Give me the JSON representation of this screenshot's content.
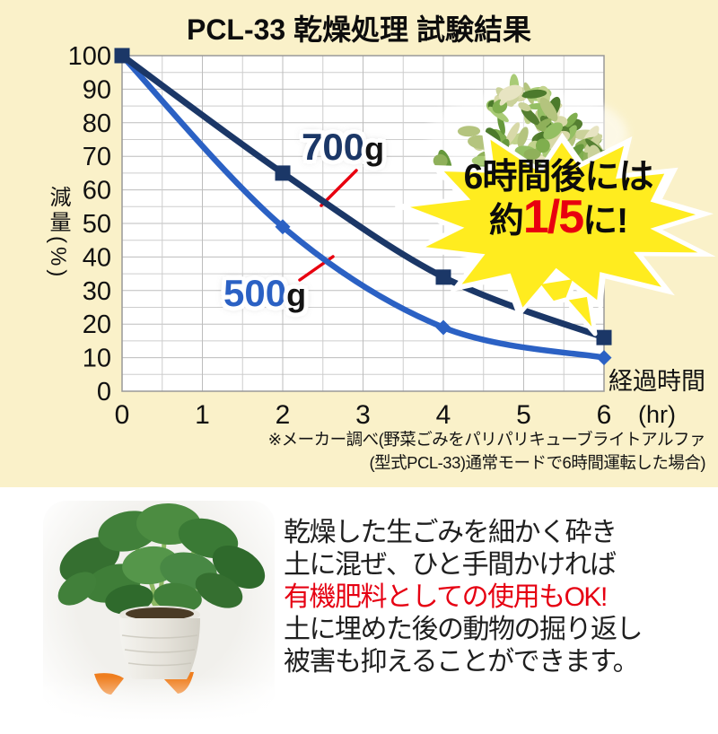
{
  "title": "PCL-33 乾燥処理 試験結果",
  "chart_data": {
    "type": "line",
    "x": [
      0,
      2,
      4,
      6
    ],
    "series": [
      {
        "name": "700g",
        "label_value": "700",
        "label_unit": "g",
        "color": "#1b3767",
        "marker": "square",
        "values": [
          100,
          65,
          34,
          16
        ]
      },
      {
        "name": "500g",
        "label_value": "500",
        "label_unit": "g",
        "color": "#2b61c4",
        "marker": "diamond",
        "values": [
          100,
          49,
          19,
          10
        ]
      }
    ],
    "title": "PCL-33 乾燥処理 試験結果",
    "xlabel": "経過時間",
    "xlabel_unit": "(hr)",
    "ylabel": "減量(%)",
    "xlim": [
      0,
      6
    ],
    "ylim": [
      0,
      100
    ],
    "x_ticks": [
      "0",
      "1",
      "2",
      "3",
      "4",
      "5",
      "6"
    ],
    "y_ticks": [
      "0",
      "10",
      "20",
      "30",
      "40",
      "50",
      "60",
      "70",
      "80",
      "90",
      "100"
    ],
    "x_minor_step": 0.5,
    "y_minor_step": 5,
    "grid": "on",
    "legend_position": "inline-labels"
  },
  "badge": {
    "line1": "6時間後には",
    "line2_prefix": "約",
    "line2_fraction": "1/5",
    "line2_suffix": "に!"
  },
  "footnote": {
    "line1": "※メーカー調べ(野菜ごみをパリパリキューブライトアルファ",
    "line2": "(型式PCL-33)通常モードで6時間運転した場合)"
  },
  "bottom": {
    "lines": [
      {
        "text": "乾燥した生ごみを細かく砕き",
        "emphasis": false
      },
      {
        "text": "土に混ぜ、ひと手間かければ",
        "emphasis": false
      },
      {
        "text": "有機肥料としての使用もOK!",
        "emphasis": true
      },
      {
        "text": "土に埋めた後の動物の掘り返し",
        "emphasis": false
      },
      {
        "text": "被害も抑えることができます。",
        "emphasis": false
      }
    ]
  },
  "colors": {
    "background": "#faf1c9",
    "panel_white": "#ffffff",
    "navy": "#1b3767",
    "blue": "#2b61c4",
    "red": "#e8000f",
    "burst_yellow": "#ffec1f",
    "grid": "#cdcdcd",
    "grid_major": "#bdbdbd",
    "axis": "#999999",
    "text": "#111111"
  }
}
